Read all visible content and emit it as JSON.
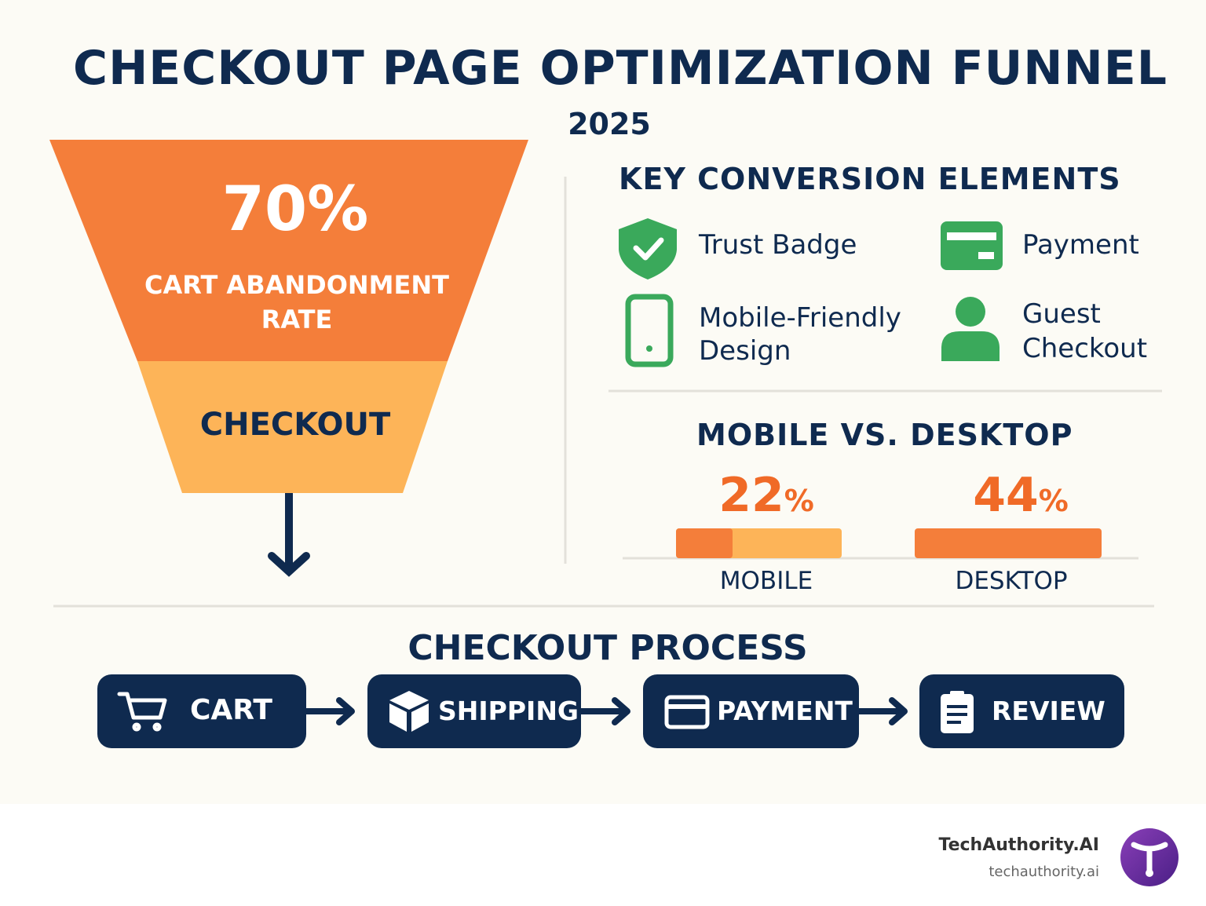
{
  "header": {
    "title": "CHECKOUT PAGE OPTIMIZATION FUNNEL",
    "subtitle": "2025"
  },
  "funnel": {
    "stat": "70%",
    "stat_label": "CART ABANDONMENT RATE",
    "bottom_label": "CHECKOUT"
  },
  "key_elements": {
    "title": "KEY CONVERSION ELEMENTS",
    "items": [
      "Trust Badge",
      "Payment",
      "Mobile-Friendly Design",
      "Guest Checkout"
    ]
  },
  "comparison": {
    "title": "MOBILE VS. DESKTOP",
    "items": [
      {
        "value": 22,
        "unit": "%",
        "label": "MOBILE"
      },
      {
        "value": 44,
        "unit": "%",
        "label": "DESKTOP"
      }
    ]
  },
  "process": {
    "title": "CHECKOUT PROCESS",
    "steps": [
      "CART",
      "SHIPPING",
      "PAYMENT",
      "REVIEW"
    ]
  },
  "footer": {
    "brand": "TechAuthority.AI",
    "url": "techauthority.ai"
  }
}
